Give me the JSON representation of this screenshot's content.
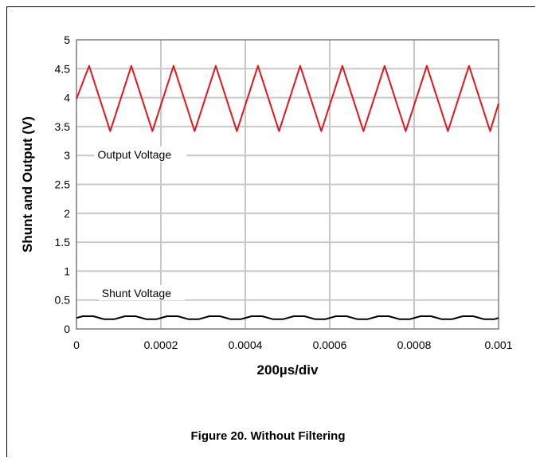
{
  "chart_data": {
    "type": "line",
    "title": "",
    "xlabel": "200µs/div",
    "ylabel": "Shunt and Output (V)",
    "xlim": [
      0,
      0.001
    ],
    "ylim": [
      0,
      5
    ],
    "x_ticks": [
      "0",
      "0.0002",
      "0.0004",
      "0.0006",
      "0.0008",
      "0.001"
    ],
    "y_ticks": [
      "0",
      "0.5",
      "1",
      "1.5",
      "2",
      "2.5",
      "3",
      "3.5",
      "4",
      "4.5",
      "5"
    ],
    "grid": true,
    "annotations": [
      {
        "text": "Output Voltage",
        "x": 5e-05,
        "y": 2.95
      },
      {
        "text": "Shunt Voltage",
        "x": 6e-05,
        "y": 0.55
      }
    ],
    "series": [
      {
        "color": "#e8141c",
        "x": [
          0,
          3e-05,
          8e-05,
          0.00013,
          0.00018,
          0.00023,
          0.00028,
          0.00033,
          0.00038,
          0.00043,
          0.00048,
          0.00053,
          0.00058,
          0.00063,
          0.00068,
          0.00073,
          0.00078,
          0.00083,
          0.00088,
          0.00093,
          0.00098,
          0.001
        ],
        "y": [
          3.98,
          4.55,
          3.42,
          4.55,
          3.42,
          4.55,
          3.42,
          4.55,
          3.42,
          4.55,
          3.42,
          4.55,
          3.42,
          4.55,
          3.42,
          4.55,
          3.42,
          4.55,
          3.42,
          4.55,
          3.42,
          3.9
        ]
      },
      {
        "color": "#000000",
        "x": [
          0,
          1.5e-05,
          4e-05,
          6.5e-05,
          9e-05,
          0.000115,
          0.00014,
          0.000165,
          0.00019,
          0.000215,
          0.00024,
          0.000265,
          0.00029,
          0.000315,
          0.00034,
          0.000365,
          0.00039,
          0.000415,
          0.00044,
          0.000465,
          0.00049,
          0.000515,
          0.00054,
          0.000565,
          0.00059,
          0.000615,
          0.00064,
          0.000665,
          0.00069,
          0.000715,
          0.00074,
          0.000765,
          0.00079,
          0.000815,
          0.00084,
          0.000865,
          0.00089,
          0.000915,
          0.00094,
          0.000965,
          0.00099,
          0.001
        ],
        "y": [
          0.19,
          0.22,
          0.22,
          0.17,
          0.17,
          0.22,
          0.22,
          0.17,
          0.17,
          0.22,
          0.22,
          0.17,
          0.17,
          0.22,
          0.22,
          0.17,
          0.17,
          0.22,
          0.22,
          0.17,
          0.17,
          0.22,
          0.22,
          0.17,
          0.17,
          0.22,
          0.22,
          0.17,
          0.17,
          0.22,
          0.22,
          0.17,
          0.17,
          0.22,
          0.22,
          0.17,
          0.17,
          0.22,
          0.22,
          0.17,
          0.17,
          0.19
        ]
      }
    ]
  },
  "caption": "Figure 20. Without Filtering"
}
